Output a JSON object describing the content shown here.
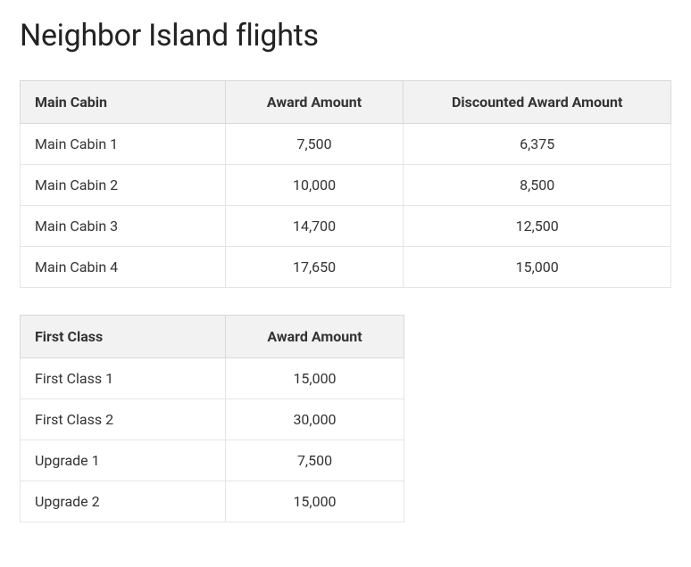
{
  "title": "Neighbor Island flights",
  "table1": {
    "columns": [
      "Main Cabin",
      "Award Amount",
      "Discounted Award Amount"
    ],
    "rows": [
      [
        "Main Cabin 1",
        "7,500",
        "6,375"
      ],
      [
        "Main Cabin 2",
        "10,000",
        "8,500"
      ],
      [
        "Main Cabin 3",
        "14,700",
        "12,500"
      ],
      [
        "Main Cabin 4",
        "17,650",
        "15,000"
      ]
    ],
    "column_align": [
      "left",
      "center",
      "center"
    ],
    "header_bg": "#f2f2f2",
    "border_color": "#e5e5e5",
    "header_border_color": "#d9d9d9",
    "font_size": 16
  },
  "table2": {
    "columns": [
      "First Class",
      "Award Amount"
    ],
    "rows": [
      [
        "First Class 1",
        "15,000"
      ],
      [
        "First Class 2",
        "30,000"
      ],
      [
        "Upgrade 1",
        "7,500"
      ],
      [
        "Upgrade 2",
        "15,000"
      ]
    ],
    "column_align": [
      "left",
      "center"
    ],
    "header_bg": "#f2f2f2",
    "border_color": "#e5e5e5",
    "header_border_color": "#d9d9d9",
    "font_size": 16
  },
  "colors": {
    "background": "#ffffff",
    "text": "#333333",
    "heading": "#222222"
  },
  "typography": {
    "heading_fontsize": 34,
    "heading_weight": 400,
    "body_fontsize": 16,
    "header_weight": 700
  }
}
